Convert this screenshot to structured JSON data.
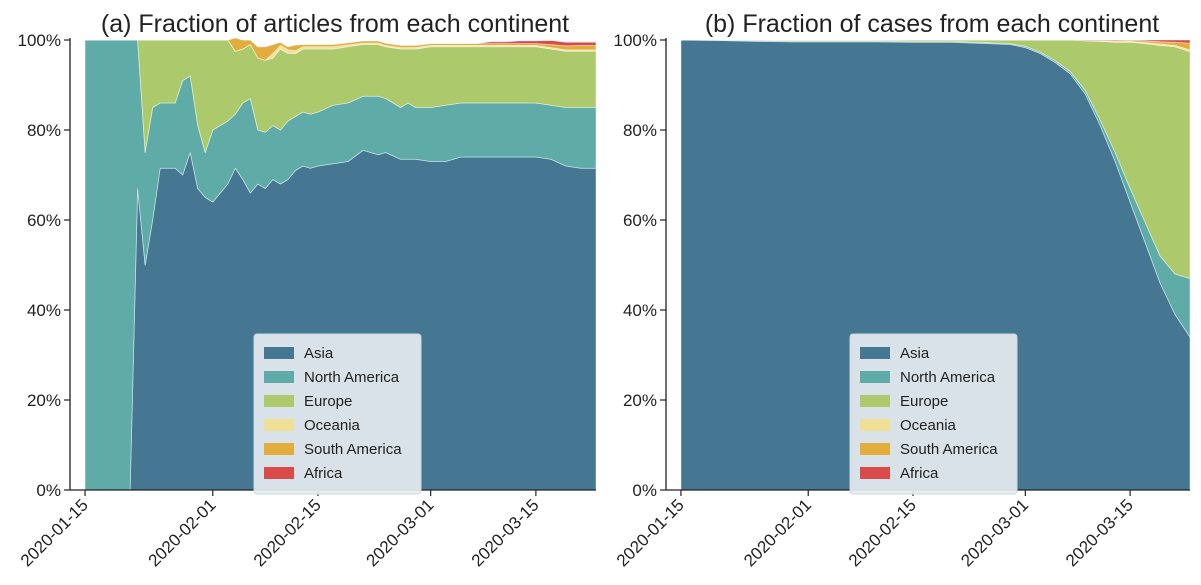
{
  "figure": {
    "background": "#ffffff"
  },
  "chart_data": [
    {
      "type": "area",
      "stacked": true,
      "title": "(a) Fraction of articles from each continent",
      "xlabel": "",
      "ylabel": "",
      "x_type": "date",
      "xlim": [
        "2020-01-13",
        "2020-03-23"
      ],
      "ylim": [
        0,
        100
      ],
      "y_ticks": [
        "0%",
        "20%",
        "40%",
        "60%",
        "80%",
        "100%"
      ],
      "x_ticks": [
        "2020-01-15",
        "2020-02-01",
        "2020-02-15",
        "2020-03-01",
        "2020-03-15"
      ],
      "grid": false,
      "legend_position": "lower-center",
      "x": [
        "2020-01-15",
        "2020-01-20",
        "2020-01-21",
        "2020-01-22",
        "2020-01-23",
        "2020-01-24",
        "2020-01-25",
        "2020-01-26",
        "2020-01-27",
        "2020-01-28",
        "2020-01-29",
        "2020-01-30",
        "2020-01-31",
        "2020-02-01",
        "2020-02-02",
        "2020-02-03",
        "2020-02-04",
        "2020-02-05",
        "2020-02-06",
        "2020-02-07",
        "2020-02-08",
        "2020-02-09",
        "2020-02-10",
        "2020-02-11",
        "2020-02-12",
        "2020-02-13",
        "2020-02-14",
        "2020-02-15",
        "2020-02-17",
        "2020-02-19",
        "2020-02-21",
        "2020-02-23",
        "2020-02-24",
        "2020-02-26",
        "2020-02-27",
        "2020-02-28",
        "2020-03-01",
        "2020-03-03",
        "2020-03-05",
        "2020-03-07",
        "2020-03-09",
        "2020-03-11",
        "2020-03-13",
        "2020-03-15",
        "2020-03-17",
        "2020-03-19",
        "2020-03-21",
        "2020-03-23"
      ],
      "series": [
        {
          "name": "Asia",
          "color": "#457692",
          "values": [
            0,
            0,
            0,
            67,
            50,
            60,
            71.5,
            71.5,
            71.5,
            70,
            75,
            67,
            65,
            64,
            66,
            68,
            71.5,
            69,
            66,
            68,
            67,
            69,
            68,
            69,
            71,
            72,
            71.5,
            72,
            72.5,
            73,
            75.5,
            74.5,
            75,
            73.5,
            73.5,
            73.5,
            73,
            73,
            74,
            74,
            74,
            74,
            74,
            74,
            73.5,
            72,
            71.5,
            71.5
          ]
        },
        {
          "name": "North America",
          "color": "#5eaba8",
          "values": [
            100,
            100,
            100,
            33,
            25,
            25,
            14.5,
            14.5,
            14.5,
            21,
            17,
            14,
            10,
            16,
            15,
            14,
            12,
            17,
            21,
            12,
            12.5,
            12,
            12,
            13,
            12,
            12,
            12,
            12,
            13,
            13,
            12,
            13,
            12,
            11.5,
            12.5,
            11.5,
            12,
            12.5,
            12,
            12,
            12,
            12,
            12,
            12,
            12,
            13,
            13.5,
            13.5
          ]
        },
        {
          "name": "Europe",
          "color": "#acca6b",
          "values": [
            0,
            0,
            0,
            0,
            25,
            15,
            14,
            14,
            14,
            9,
            8,
            19,
            25,
            20,
            19,
            18,
            14,
            12,
            12,
            16,
            16,
            15,
            18,
            15,
            14,
            14,
            14.5,
            14,
            12.5,
            12.5,
            11.5,
            11.5,
            11.5,
            13,
            12,
            13,
            13.5,
            13,
            12.5,
            12.5,
            12.5,
            12.5,
            12.5,
            12.5,
            12.5,
            12.5,
            12.5,
            12.5
          ]
        },
        {
          "name": "Oceania",
          "color": "#f0e096",
          "values": [
            0,
            0,
            0,
            0,
            0,
            0,
            0,
            0,
            0,
            0,
            0,
            0,
            0,
            0,
            0,
            0,
            0,
            0,
            0,
            0,
            0,
            1,
            0.8,
            0.8,
            0.6,
            0.5,
            0.5,
            0.5,
            0.5,
            0.4,
            0.3,
            0.3,
            0.3,
            0.3,
            0.3,
            0.3,
            0.3,
            0.3,
            0.3,
            0.3,
            0.3,
            0.3,
            0.3,
            0.3,
            0.3,
            0.3,
            0.3,
            0.3
          ]
        },
        {
          "name": "South America",
          "color": "#e2ad3c",
          "values": [
            0,
            0,
            0,
            0,
            0,
            0,
            0,
            0,
            0,
            0,
            0,
            0,
            0,
            0,
            0,
            0,
            3,
            2,
            1,
            2.5,
            3,
            2,
            0.7,
            0.7,
            1.3,
            0.5,
            0.5,
            0.5,
            0.5,
            0.5,
            0.5,
            0.5,
            0.5,
            0.5,
            0.5,
            0.5,
            0.4,
            0.4,
            0.4,
            0.4,
            0.4,
            0.4,
            0.4,
            0.4,
            0.7,
            0.9,
            1,
            1
          ]
        },
        {
          "name": "Africa",
          "color": "#d94a48",
          "values": [
            0,
            0,
            0,
            0,
            0,
            0,
            0,
            0,
            0,
            0,
            0,
            0,
            0,
            0,
            0,
            0,
            0,
            0,
            0,
            0,
            0,
            0,
            0,
            0,
            0,
            0,
            0,
            0,
            0,
            0,
            0,
            0,
            0,
            0,
            0,
            0,
            0,
            0,
            0,
            0,
            0.4,
            0.4,
            0.6,
            0.6,
            0.9,
            0.8,
            0.7,
            0.7
          ]
        }
      ]
    },
    {
      "type": "area",
      "stacked": true,
      "title": "(b) Fraction of cases from each continent",
      "xlabel": "",
      "ylabel": "",
      "x_type": "date",
      "xlim": [
        "2020-01-13",
        "2020-03-23"
      ],
      "ylim": [
        0,
        100
      ],
      "y_ticks": [
        "0%",
        "20%",
        "40%",
        "60%",
        "80%",
        "100%"
      ],
      "x_ticks": [
        "2020-01-15",
        "2020-02-01",
        "2020-02-15",
        "2020-03-01",
        "2020-03-15"
      ],
      "grid": false,
      "legend_position": "lower-center",
      "x": [
        "2020-01-15",
        "2020-01-20",
        "2020-01-25",
        "2020-01-30",
        "2020-02-05",
        "2020-02-10",
        "2020-02-15",
        "2020-02-20",
        "2020-02-25",
        "2020-02-28",
        "2020-03-01",
        "2020-03-03",
        "2020-03-05",
        "2020-03-07",
        "2020-03-09",
        "2020-03-11",
        "2020-03-13",
        "2020-03-15",
        "2020-03-17",
        "2020-03-19",
        "2020-03-21",
        "2020-03-23"
      ],
      "series": [
        {
          "name": "Asia",
          "color": "#457692",
          "values": [
            100,
            99.9,
            99.7,
            99.6,
            99.6,
            99.6,
            99.5,
            99.5,
            99.2,
            99,
            98.3,
            97,
            95,
            92.5,
            88,
            81,
            73,
            64,
            55,
            46,
            39,
            34
          ]
        },
        {
          "name": "North America",
          "color": "#5eaba8",
          "values": [
            0,
            0.1,
            0.2,
            0.2,
            0.2,
            0.2,
            0.2,
            0.2,
            0.2,
            0.2,
            0.3,
            0.3,
            0.4,
            0.5,
            0.8,
            1.2,
            2,
            3,
            4.5,
            6,
            9,
            13
          ]
        },
        {
          "name": "Europe",
          "color": "#acca6b",
          "values": [
            0,
            0,
            0.1,
            0.2,
            0.2,
            0.2,
            0.3,
            0.3,
            0.6,
            0.8,
            1.4,
            2.7,
            4.6,
            7,
            11,
            17.5,
            24.5,
            32.5,
            39.7,
            46.8,
            50.5,
            50.4
          ]
        },
        {
          "name": "Oceania",
          "color": "#f0e096",
          "values": [
            0,
            0,
            0,
            0,
            0,
            0,
            0,
            0,
            0,
            0,
            0,
            0,
            0,
            0,
            0,
            0.1,
            0.1,
            0.2,
            0.2,
            0.3,
            0.3,
            0.4
          ]
        },
        {
          "name": "South America",
          "color": "#e2ad3c",
          "values": [
            0,
            0,
            0,
            0,
            0,
            0,
            0,
            0,
            0,
            0,
            0,
            0,
            0,
            0,
            0.1,
            0.1,
            0.2,
            0.2,
            0.4,
            0.5,
            0.7,
            1.5
          ]
        },
        {
          "name": "Africa",
          "color": "#d94a48",
          "values": [
            0,
            0,
            0,
            0,
            0,
            0,
            0,
            0,
            0,
            0,
            0,
            0,
            0,
            0,
            0.1,
            0.1,
            0.2,
            0.1,
            0.2,
            0.4,
            0.5,
            0.7
          ]
        }
      ]
    }
  ]
}
